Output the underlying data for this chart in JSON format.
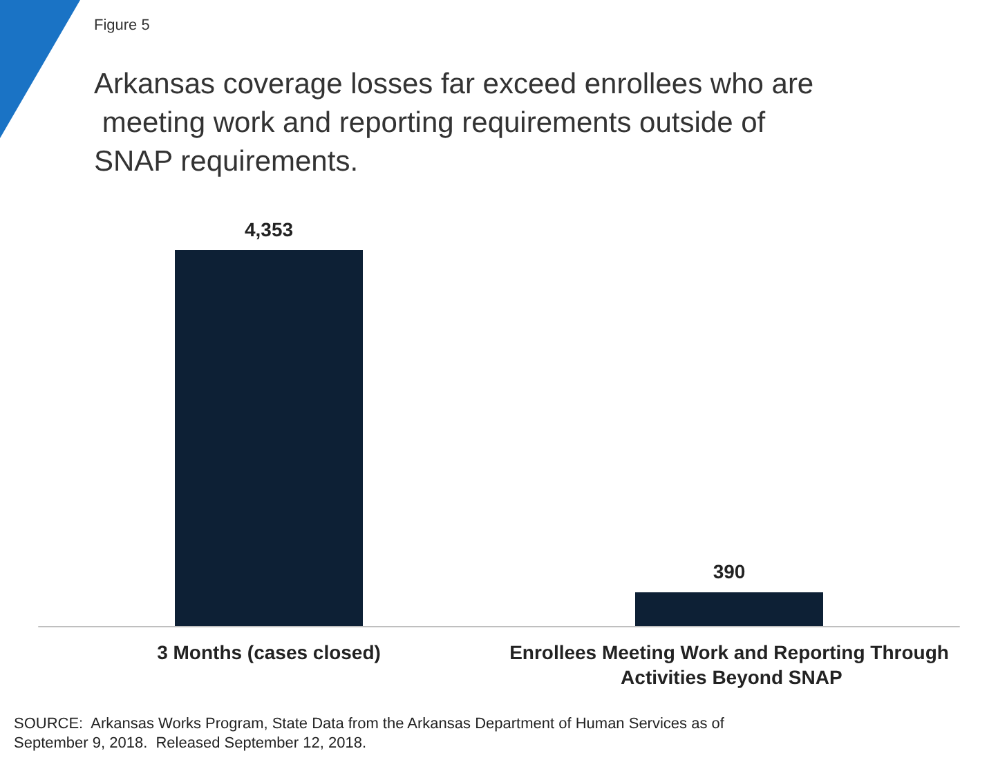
{
  "chart_data": {
    "type": "bar",
    "title": "Arkansas coverage losses far exceed enrollees who are meeting work and reporting requirements outside of SNAP requirements.",
    "categories": [
      "3 Months (cases closed)",
      "Enrollees Meeting Work and Reporting Through Activities Beyond SNAP"
    ],
    "values": [
      4353,
      390
    ],
    "value_labels": [
      "4,353",
      "390"
    ],
    "color": "#0d2035",
    "annotations": [
      "Figure 5",
      "SOURCE:  Arkansas Works Program, State Data from the Arkansas Department of Human Services as of September 9, 2018.  Released September 12, 2018."
    ]
  }
}
